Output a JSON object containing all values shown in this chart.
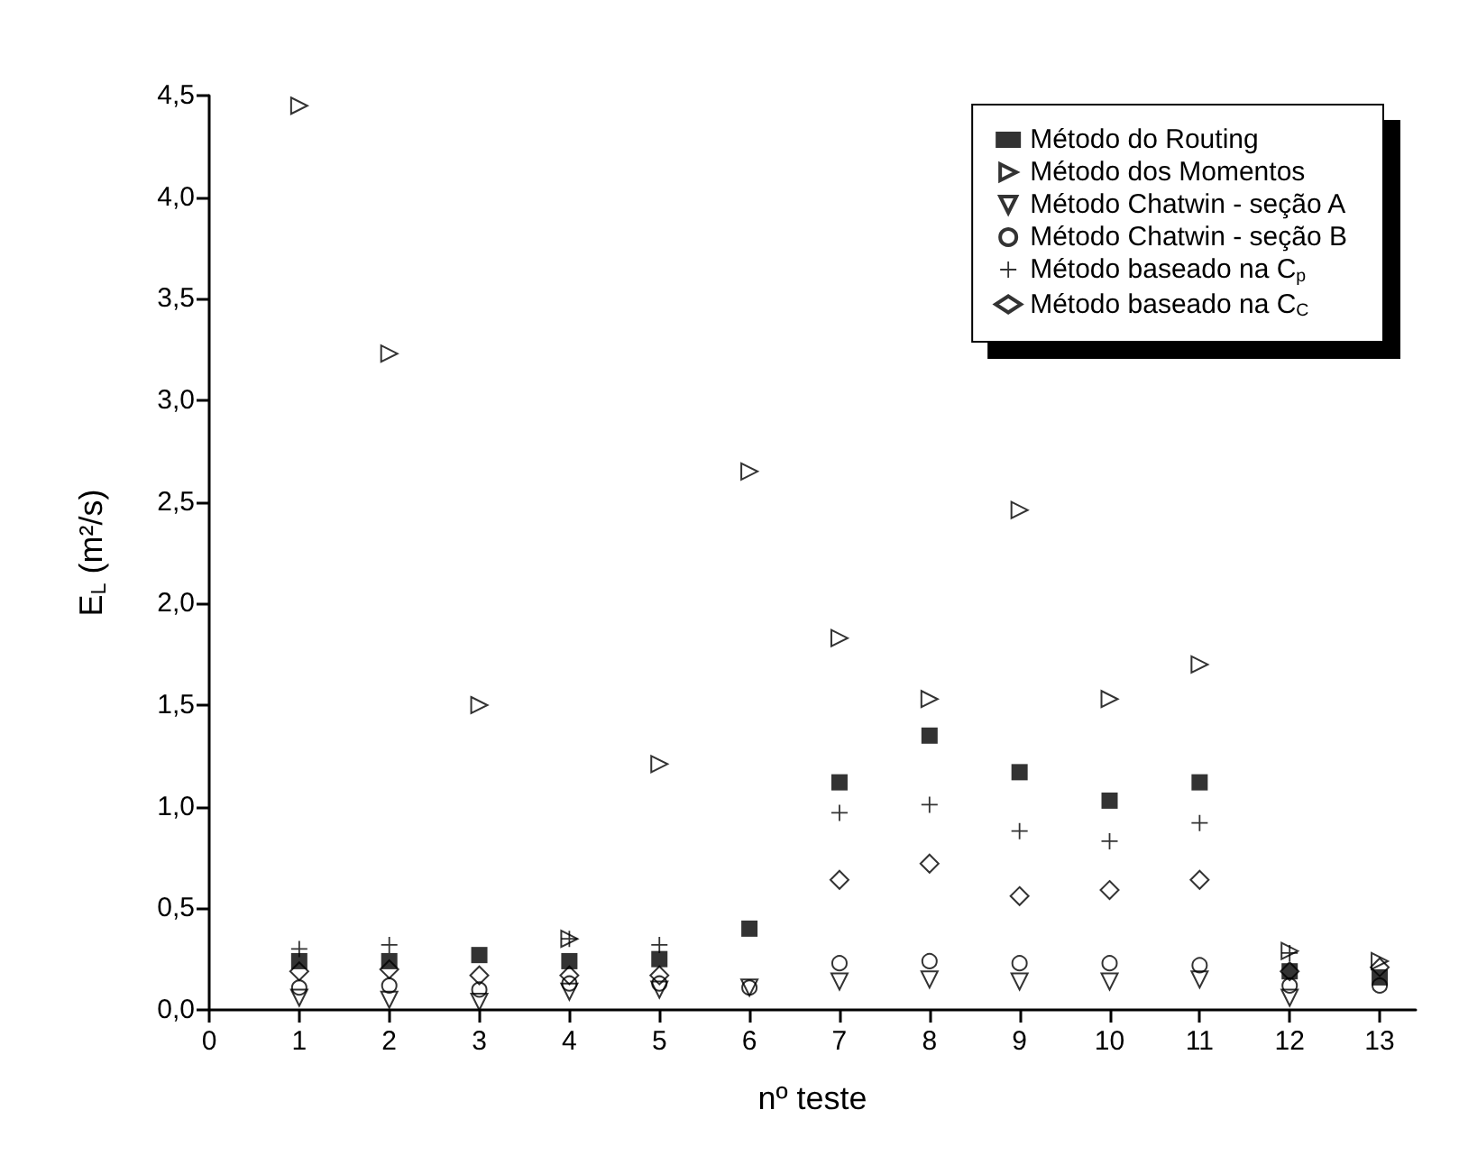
{
  "chart_data": {
    "type": "scatter",
    "xlabel": "nº teste",
    "ylabel": "E$_{L}$ (m²/s)",
    "x": [
      1,
      2,
      3,
      4,
      5,
      6,
      7,
      8,
      9,
      10,
      11,
      12,
      13
    ],
    "series": [
      {
        "name": "Método do Routing",
        "color": "#000000",
        "marker": "square",
        "values": [
          0.24,
          0.24,
          0.27,
          0.24,
          0.25,
          0.4,
          1.12,
          1.35,
          1.17,
          1.03,
          1.12,
          0.19,
          0.16
        ]
      },
      {
        "name": "Método dos Momentos",
        "color": "#000000",
        "marker": "triangle-right",
        "values": [
          4.45,
          3.23,
          1.5,
          0.35,
          1.21,
          2.65,
          1.83,
          1.53,
          2.46,
          1.53,
          1.7,
          0.29,
          0.24
        ]
      },
      {
        "name": "Método Chatwin - seção A",
        "color": "#000000",
        "marker": "triangle-down",
        "values": [
          0.06,
          0.05,
          0.04,
          0.09,
          0.1,
          0.11,
          0.14,
          0.15,
          0.14,
          0.14,
          0.15,
          0.06,
          null
        ]
      },
      {
        "name": "Método Chatwin - seção B",
        "color": "#000000",
        "marker": "circle",
        "values": [
          0.11,
          0.12,
          0.1,
          0.13,
          0.13,
          0.11,
          0.23,
          0.24,
          0.23,
          0.23,
          0.22,
          0.12,
          0.12
        ]
      },
      {
        "name": "Método baseado na C$_{p}$",
        "color": "#000000",
        "marker": "cross",
        "values": [
          0.3,
          0.32,
          null,
          0.35,
          0.32,
          null,
          0.97,
          1.01,
          0.88,
          0.83,
          0.92,
          0.28,
          null
        ]
      },
      {
        "name": "Método baseado na C$_{C}$",
        "color": "#000000",
        "marker": "diamond",
        "values": [
          0.19,
          0.2,
          0.17,
          0.17,
          0.17,
          null,
          0.64,
          0.72,
          0.56,
          0.59,
          0.64,
          0.19,
          0.21
        ]
      }
    ],
    "xlim": [
      0,
      13.4
    ],
    "xticks": [
      0,
      1,
      2,
      3,
      4,
      5,
      6,
      7,
      8,
      9,
      10,
      11,
      12,
      13
    ],
    "ylim": [
      0,
      4.5
    ],
    "yticks": [
      {
        "value": 0,
        "label": "0,0"
      },
      {
        "value": 0.5,
        "label": "0,5"
      },
      {
        "value": 1,
        "label": "1,0"
      },
      {
        "value": 1.5,
        "label": "1,5"
      },
      {
        "value": 2,
        "label": "2,0"
      },
      {
        "value": 2.5,
        "label": "2,5"
      },
      {
        "value": 3,
        "label": "3,0"
      },
      {
        "value": 3.5,
        "label": "3,5"
      },
      {
        "value": 4,
        "label": "4,0"
      },
      {
        "value": 4.5,
        "label": "4,5"
      }
    ],
    "grid": false,
    "legend": "top right"
  }
}
